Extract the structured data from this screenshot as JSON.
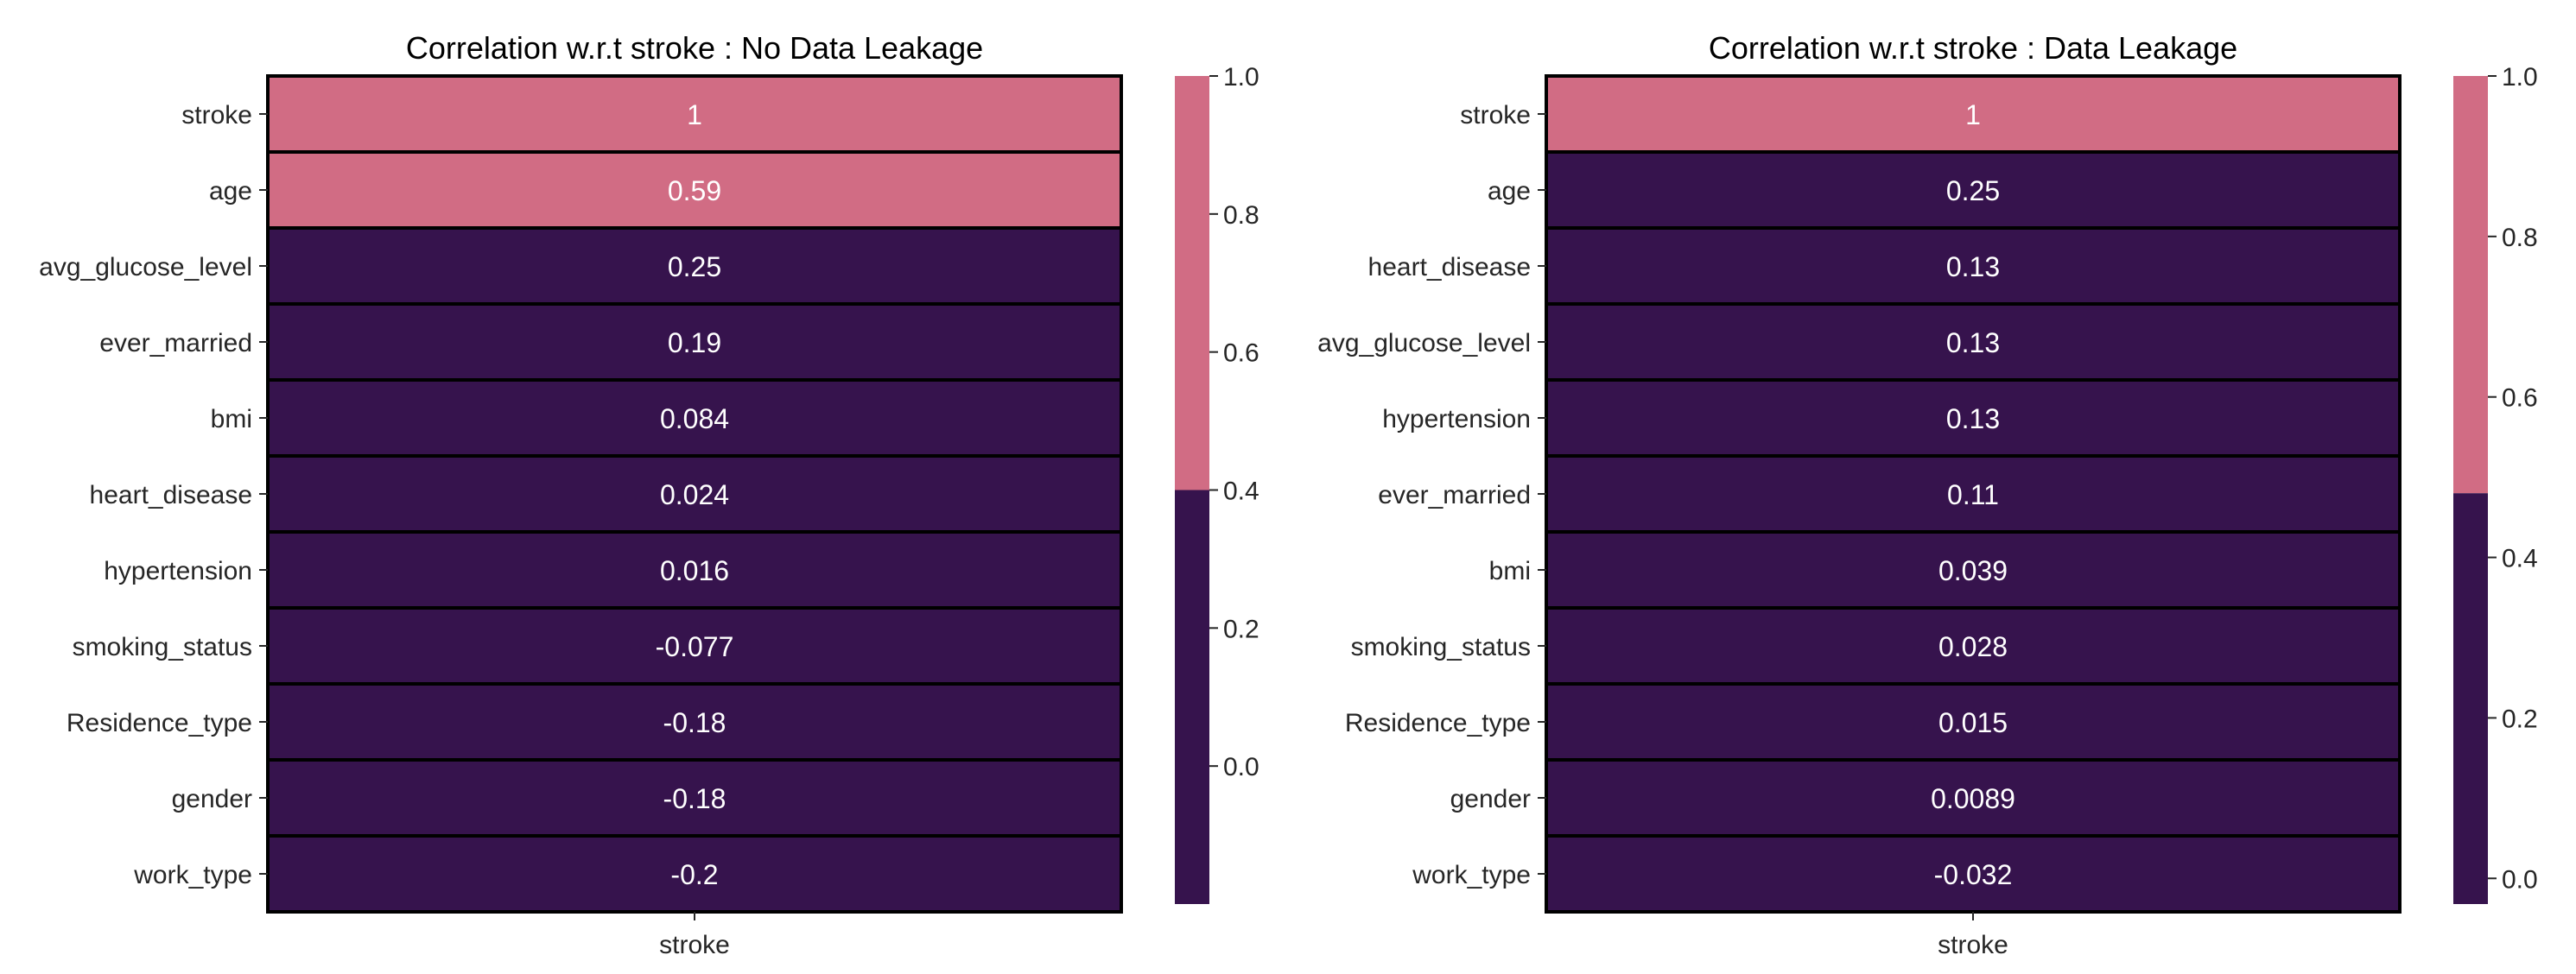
{
  "colors": {
    "dark": "#36134d",
    "light": "#d16c84",
    "grid": "#000000",
    "text_on_cell": "#ffffff",
    "axis_text": "#262626"
  },
  "chart_data": [
    {
      "type": "heatmap",
      "title": "Correlation w.r.t stroke : No Data Leakage",
      "xlabel": "stroke",
      "row_labels": [
        "stroke",
        "age",
        "avg_glucose_level",
        "ever_married",
        "bmi",
        "heart_disease",
        "hypertension",
        "smoking_status",
        "Residence_type",
        "gender",
        "work_type"
      ],
      "values": [
        1,
        0.59,
        0.25,
        0.19,
        0.084,
        0.024,
        0.016,
        -0.077,
        -0.18,
        -0.18,
        -0.2
      ],
      "value_labels": [
        "1",
        "0.59",
        "0.25",
        "0.19",
        "0.084",
        "0.024",
        "0.016",
        "-0.077",
        "-0.18",
        "-0.18",
        "-0.2"
      ],
      "colorbar": {
        "min": -0.2,
        "max": 1.0,
        "threshold": 0.4,
        "ticks": [
          0.0,
          0.2,
          0.4,
          0.6,
          0.8,
          1.0
        ],
        "tick_labels": [
          "0.0",
          "0.2",
          "0.4",
          "0.6",
          "0.8",
          "1.0"
        ]
      }
    },
    {
      "type": "heatmap",
      "title": "Correlation w.r.t stroke : Data Leakage",
      "xlabel": "stroke",
      "row_labels": [
        "stroke",
        "age",
        "heart_disease",
        "avg_glucose_level",
        "hypertension",
        "ever_married",
        "bmi",
        "smoking_status",
        "Residence_type",
        "gender",
        "work_type"
      ],
      "values": [
        1,
        0.25,
        0.13,
        0.13,
        0.13,
        0.11,
        0.039,
        0.028,
        0.015,
        0.0089,
        -0.032
      ],
      "value_labels": [
        "1",
        "0.25",
        "0.13",
        "0.13",
        "0.13",
        "0.11",
        "0.039",
        "0.028",
        "0.015",
        "0.0089",
        "-0.032"
      ],
      "colorbar": {
        "min": -0.032,
        "max": 1.0,
        "threshold": 0.48,
        "ticks": [
          0.0,
          0.2,
          0.4,
          0.6,
          0.8,
          1.0
        ],
        "tick_labels": [
          "0.0",
          "0.2",
          "0.4",
          "0.6",
          "0.8",
          "1.0"
        ]
      }
    }
  ]
}
